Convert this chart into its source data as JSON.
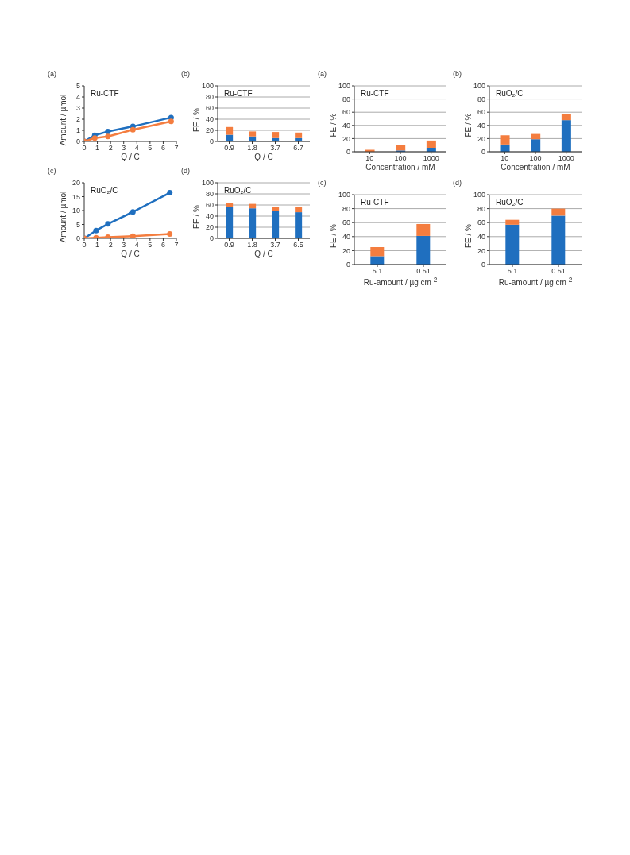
{
  "chart_data": [
    {
      "type": "line",
      "title": "(a)",
      "annotations": [
        "Ru-CTF"
      ],
      "xlabel": "Q / C",
      "ylabel": "Amount / µmol",
      "x": [
        0,
        0.8,
        1.8,
        3.7,
        6.6
      ],
      "xlim": [
        0,
        7
      ],
      "xticks": [
        0,
        1,
        2,
        3,
        4,
        5,
        6,
        7
      ],
      "ylim": [
        0,
        5
      ],
      "yticks": [
        0,
        1,
        2,
        3,
        4,
        5
      ],
      "marker": "circle",
      "series": [
        {
          "color": "#1f6fbf",
          "values": [
            0,
            0.55,
            0.9,
            1.35,
            2.15
          ]
        },
        {
          "color": "#f47d3f",
          "values": [
            0,
            0.3,
            0.45,
            1.05,
            1.8
          ]
        }
      ]
    },
    {
      "type": "bar",
      "title": "(b)",
      "annotations": [
        "Ru-CTF"
      ],
      "xlabel": "Q / C",
      "ylabel": "FE / %",
      "categories": [
        "0.9",
        "1.8",
        "3.7",
        "6.7"
      ],
      "ylim": [
        0,
        100
      ],
      "yticks": [
        0,
        20,
        40,
        60,
        80,
        100
      ],
      "grid": "y",
      "stacked": true,
      "series": [
        {
          "color": "#1f6fbf",
          "values": [
            12,
            9,
            6,
            6
          ]
        },
        {
          "color": "#f47d3f",
          "values": [
            14,
            9,
            11,
            10
          ]
        }
      ]
    },
    {
      "type": "line",
      "title": "(c)",
      "annotations": [
        "RuO₂/C"
      ],
      "xlabel": "Q / C",
      "ylabel": "Amount / µmol",
      "x": [
        0,
        0.9,
        1.8,
        3.7,
        6.5
      ],
      "xlim": [
        0,
        7
      ],
      "xticks": [
        0,
        1,
        2,
        3,
        4,
        5,
        6,
        7
      ],
      "ylim": [
        0,
        20
      ],
      "yticks": [
        0,
        5,
        10,
        15,
        20
      ],
      "marker": "circle",
      "series": [
        {
          "color": "#1f6fbf",
          "values": [
            0,
            2.8,
            5.2,
            9.5,
            16.4
          ]
        },
        {
          "color": "#f47d3f",
          "values": [
            0,
            0.2,
            0.4,
            0.8,
            1.6
          ]
        }
      ]
    },
    {
      "type": "bar",
      "title": "(d)",
      "annotations": [
        "RuO₂/C"
      ],
      "xlabel": "Q / C",
      "ylabel": "FE / %",
      "categories": [
        "0.9",
        "1.8",
        "3.7",
        "6.5"
      ],
      "ylim": [
        0,
        100
      ],
      "yticks": [
        0,
        20,
        40,
        60,
        80,
        100
      ],
      "grid": "y",
      "stacked": true,
      "series": [
        {
          "color": "#1f6fbf",
          "values": [
            56,
            54,
            49,
            47
          ]
        },
        {
          "color": "#f47d3f",
          "values": [
            8,
            8,
            8,
            9
          ]
        }
      ]
    },
    {
      "type": "bar",
      "title": "(a)",
      "annotations": [
        "Ru-CTF"
      ],
      "xlabel": "Concentration / mM",
      "ylabel": "FE / %",
      "categories": [
        "10",
        "100",
        "1000"
      ],
      "ylim": [
        0,
        100
      ],
      "yticks": [
        0,
        20,
        40,
        60,
        80,
        100
      ],
      "grid": "y",
      "stacked": true,
      "series": [
        {
          "color": "#1f6fbf",
          "values": [
            null,
            2,
            6
          ]
        },
        {
          "color": "#f47d3f",
          "values": [
            3,
            8,
            11
          ]
        }
      ]
    },
    {
      "type": "bar",
      "title": "(b)",
      "annotations": [
        "RuO₂/C"
      ],
      "xlabel": "Concentration / mM",
      "ylabel": "FE / %",
      "categories": [
        "10",
        "100",
        "1000"
      ],
      "ylim": [
        0,
        100
      ],
      "yticks": [
        0,
        20,
        40,
        60,
        80,
        100
      ],
      "grid": "y",
      "stacked": true,
      "series": [
        {
          "color": "#1f6fbf",
          "values": [
            11,
            19,
            48
          ]
        },
        {
          "color": "#f47d3f",
          "values": [
            14,
            8,
            9
          ]
        }
      ]
    },
    {
      "type": "bar",
      "title": "(c)",
      "annotations": [
        "Ru-CTF"
      ],
      "xlabel": "Ru-amount / µg cm$^{-2}$",
      "ylabel": "FE / %",
      "categories": [
        "5.1",
        "0.51"
      ],
      "ylim": [
        0,
        100
      ],
      "yticks": [
        0,
        20,
        40,
        60,
        80,
        100
      ],
      "grid": "y",
      "stacked": true,
      "series": [
        {
          "color": "#1f6fbf",
          "values": [
            12,
            41
          ]
        },
        {
          "color": "#f47d3f",
          "values": [
            13,
            17
          ]
        }
      ]
    },
    {
      "type": "bar",
      "title": "(d)",
      "annotations": [
        "RuO₂/C"
      ],
      "xlabel": "Ru-amount / µg cm$^{-2}$",
      "ylabel": "FE / %",
      "categories": [
        "5.1",
        "0.51"
      ],
      "ylim": [
        0,
        100
      ],
      "yticks": [
        0,
        20,
        40,
        60,
        80,
        100
      ],
      "grid": "y",
      "stacked": true,
      "series": [
        {
          "color": "#1f6fbf",
          "values": [
            57,
            70
          ]
        },
        {
          "color": "#f47d3f",
          "values": [
            7,
            10
          ]
        }
      ]
    }
  ]
}
